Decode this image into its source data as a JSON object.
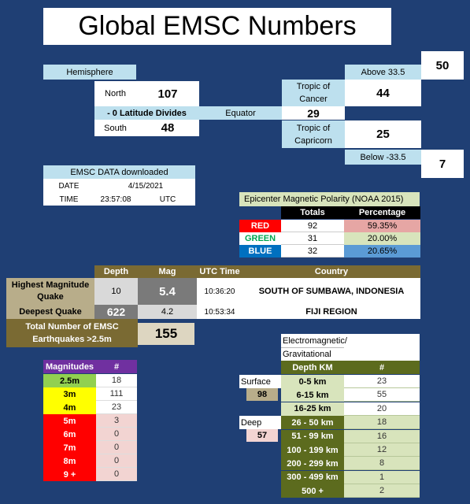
{
  "title": "Global EMSC Numbers",
  "hemisphere": {
    "header": "Hemisphere",
    "north_label": "North",
    "north_value": "107",
    "divider_label": "- 0 Latitude Divides",
    "south_label": "South",
    "south_value": "48",
    "equator_label": "Equator",
    "equator_value": "29",
    "tropic_cancer_label": "Tropic of Cancer",
    "tropic_cancer_value": "44",
    "tropic_capricorn_label": "Tropic of Capricorn",
    "tropic_capricorn_value": "25",
    "above_label": "Above 33.5",
    "above_value": "50",
    "below_label": "Below -33.5",
    "below_value": "7"
  },
  "download": {
    "header": "EMSC DATA downloaded",
    "date_label": "DATE",
    "date_value": "4/15/2021",
    "time_label": "TIME",
    "time_value": "23:57:08",
    "tz": "UTC"
  },
  "polarity": {
    "header": "Epicenter Magnetic Polarity (NOAA 2015)",
    "col_totals": "Totals",
    "col_percentage": "Percentage",
    "rows": [
      {
        "label": "RED",
        "total": "92",
        "pct": "59.35%",
        "color": "#ff0000",
        "pct_bg": "#e6a6a4",
        "label_color": "#ffffff"
      },
      {
        "label": "GREEN",
        "total": "31",
        "pct": "20.00%",
        "color": "#ffffff",
        "pct_bg": "#d8e4bc",
        "label_color": "#00a651"
      },
      {
        "label": "BLUE",
        "total": "32",
        "pct": "20.65%",
        "color": "#0070c0",
        "pct_bg": "#5b9bd5",
        "label_color": "#ffffff"
      }
    ]
  },
  "quakes": {
    "col_depth": "Depth",
    "col_mag": "Mag",
    "col_utc": "UTC Time",
    "col_country": "Country",
    "highest_label": "Highest Magnitude Quake",
    "highest_depth": "10",
    "highest_mag": "5.4",
    "highest_time": "10:36:20",
    "highest_country": "SOUTH OF SUMBAWA, INDONESIA",
    "deepest_label": "Deepest Quake",
    "deepest_depth": "622",
    "deepest_mag": "4.2",
    "deepest_time": "10:53:34",
    "deepest_country": "FIJI REGION",
    "total_label": "Total Number of EMSC Earthquakes >2.5m",
    "total_value": "155"
  },
  "magnitudes": {
    "header": "Magnitudes",
    "header_count": "#",
    "rows": [
      {
        "label": "2.5m",
        "count": "18",
        "bg": "#92d050",
        "fg": "#000000",
        "count_bg": "#ffffff"
      },
      {
        "label": "3m",
        "count": "111",
        "bg": "#ffff00",
        "fg": "#000000",
        "count_bg": "#ffffff"
      },
      {
        "label": "4m",
        "count": "23",
        "bg": "#ffff00",
        "fg": "#000000",
        "count_bg": "#ffffff"
      },
      {
        "label": "5m",
        "count": "3",
        "bg": "#ff0000",
        "fg": "#ffffff",
        "count_bg": "#f2d4d2"
      },
      {
        "label": "6m",
        "count": "0",
        "bg": "#ff0000",
        "fg": "#ffffff",
        "count_bg": "#f2d4d2"
      },
      {
        "label": "7m",
        "count": "0",
        "bg": "#ff0000",
        "fg": "#ffffff",
        "count_bg": "#f2d4d2"
      },
      {
        "label": "8m",
        "count": "0",
        "bg": "#ff0000",
        "fg": "#ffffff",
        "count_bg": "#f2d4d2"
      },
      {
        "label": "9 +",
        "count": "0",
        "bg": "#ff0000",
        "fg": "#ffffff",
        "count_bg": "#f2d4d2"
      }
    ]
  },
  "depth": {
    "header_line1": "Electromagnetic/",
    "header_line2": "Gravitational",
    "col_depth": "Depth KM",
    "col_count": "#",
    "surface_label": "Surface",
    "surface_value": "98",
    "deep_label": "Deep",
    "deep_value": "57",
    "rows": [
      {
        "label": "0-5 km",
        "count": "23"
      },
      {
        "label": "6-15 km",
        "count": "55"
      },
      {
        "label": "16-25 km",
        "count": "20"
      },
      {
        "label": "26 - 50 km",
        "count": "18"
      },
      {
        "label": "51 - 99 km",
        "count": "16"
      },
      {
        "label": "100 - 199 km",
        "count": "12"
      },
      {
        "label": "200 - 299 km",
        "count": "8"
      },
      {
        "label": "300 - 499 km",
        "count": "1"
      },
      {
        "label": "500 +",
        "count": "2"
      }
    ]
  }
}
